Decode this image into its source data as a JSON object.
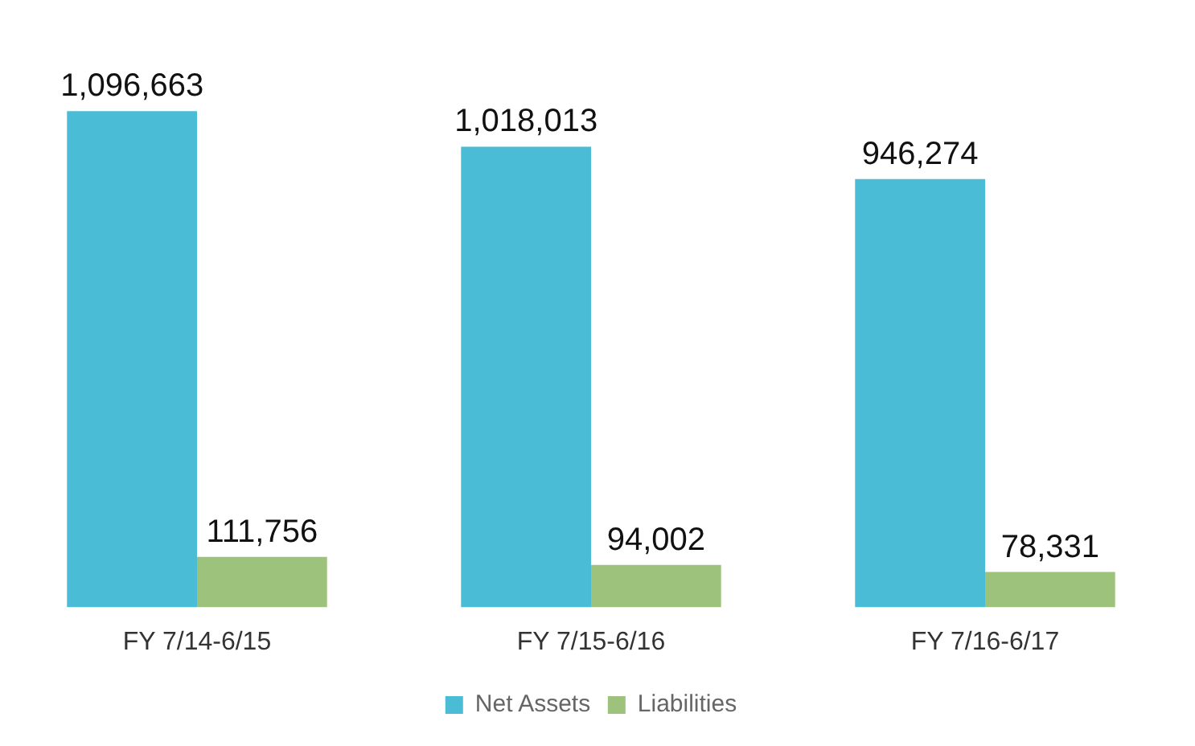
{
  "chart_data": {
    "type": "bar",
    "categories": [
      "FY 7/14-6/15",
      "FY 7/15-6/16",
      "FY 7/16-6/17"
    ],
    "series": [
      {
        "name": "Net Assets",
        "color": "#4bbcd6",
        "values": [
          1096663,
          1018013,
          946274
        ],
        "value_labels": [
          "1,096,663",
          "1,018,013",
          "946,274"
        ]
      },
      {
        "name": "Liabilities",
        "color": "#9cc27c",
        "values": [
          111756,
          94002,
          78331
        ],
        "value_labels": [
          "111,756",
          "94,002",
          "78,331"
        ]
      }
    ],
    "legend": "bottom",
    "grid": false
  }
}
